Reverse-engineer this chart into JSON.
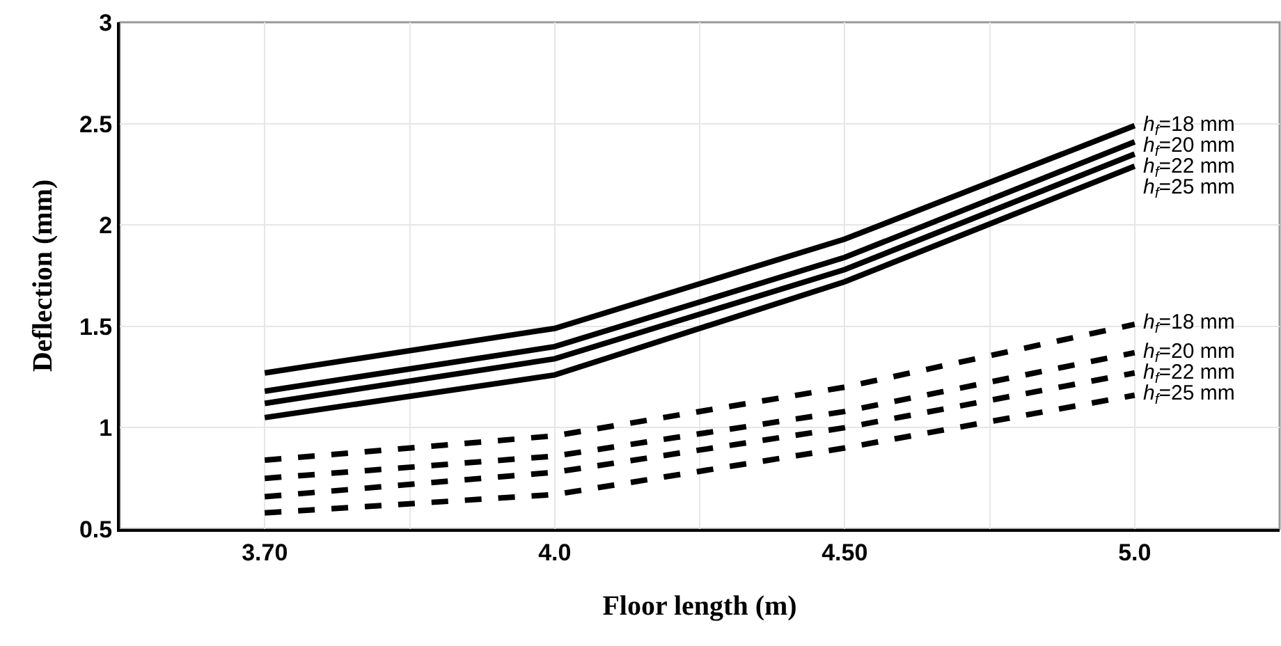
{
  "chart_data": {
    "type": "line",
    "xlabel": "Floor length (m)",
    "ylabel": "Deflection (mm)",
    "categories": [
      "3.70",
      "4.0",
      "4.50",
      "5.0"
    ],
    "ylim": [
      0.5,
      3
    ],
    "yticks": [
      0.5,
      1,
      1.5,
      2,
      2.5,
      3
    ],
    "grid": true,
    "legend": false,
    "marker": "none",
    "series": [
      {
        "name": "h$_{f}$=18 mm",
        "color": "#000000",
        "line_style": "solid",
        "values": [
          1.27,
          1.49,
          1.93,
          2.49
        ]
      },
      {
        "name": "h$_{f}$=20 mm",
        "color": "#000000",
        "line_style": "solid",
        "values": [
          1.18,
          1.4,
          1.84,
          2.41
        ]
      },
      {
        "name": "h$_{f}$=22 mm",
        "color": "#000000",
        "line_style": "solid",
        "values": [
          1.12,
          1.34,
          1.78,
          2.35
        ]
      },
      {
        "name": "h$_{f}$=25 mm",
        "color": "#000000",
        "line_style": "solid",
        "values": [
          1.05,
          1.26,
          1.72,
          2.29
        ]
      },
      {
        "name": "h$_{f}$=18 mm",
        "color": "#000000",
        "line_style": "dashed",
        "values": [
          0.84,
          0.96,
          1.2,
          1.51
        ]
      },
      {
        "name": "h$_{f}$=20 mm",
        "color": "#000000",
        "line_style": "dashed",
        "values": [
          0.75,
          0.86,
          1.08,
          1.37
        ]
      },
      {
        "name": "h$_{f}$=22 mm",
        "color": "#000000",
        "line_style": "dashed",
        "values": [
          0.66,
          0.78,
          1.0,
          1.27
        ]
      },
      {
        "name": "h$_{f}$=25 mm",
        "color": "#000000",
        "line_style": "dashed",
        "values": [
          0.58,
          0.67,
          0.9,
          1.16
        ]
      }
    ]
  }
}
